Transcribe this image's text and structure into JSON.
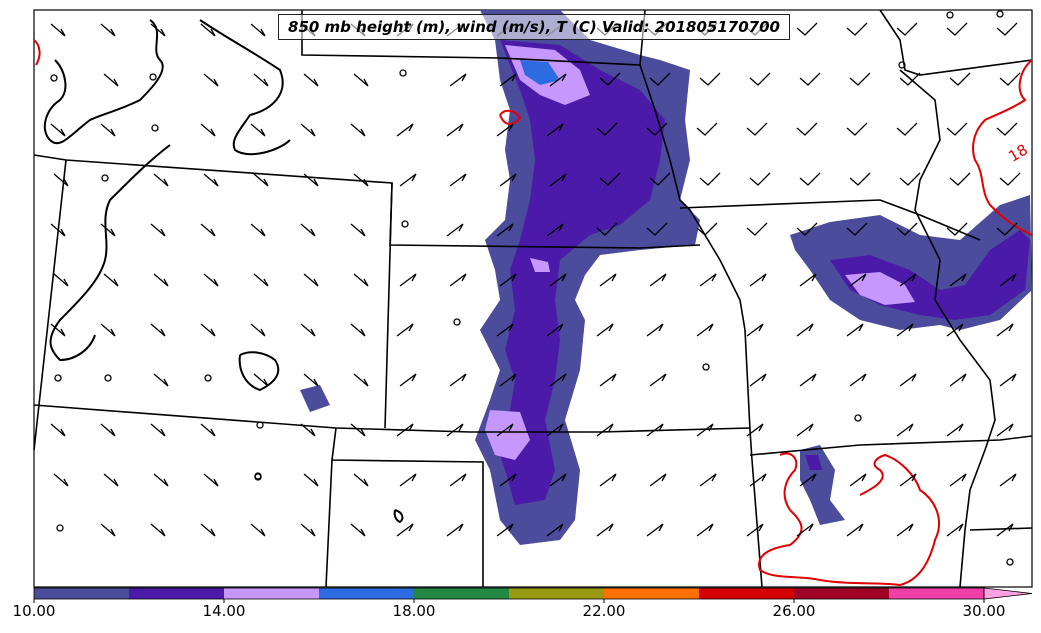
{
  "title": "850 mb height (m), wind (m/s), T (C) Valid: 201805170700",
  "contour": {
    "label": "18",
    "color": "#e00000"
  },
  "colorbar": {
    "min": 10,
    "max": 30,
    "step": 2,
    "ticks": [
      "10.00",
      "14.00",
      "18.00",
      "22.00",
      "26.00",
      "30.00"
    ],
    "tick_values": [
      10,
      14,
      18,
      22,
      26,
      30
    ],
    "colors": [
      "#4b4c9c",
      "#4b1aa8",
      "#c597ff",
      "#2d6ce0",
      "#228844",
      "#9a9a12",
      "#ff7000",
      "#d50000",
      "#a00025",
      "#f040a8",
      "#ffa0e0"
    ],
    "extend": "max"
  }
}
